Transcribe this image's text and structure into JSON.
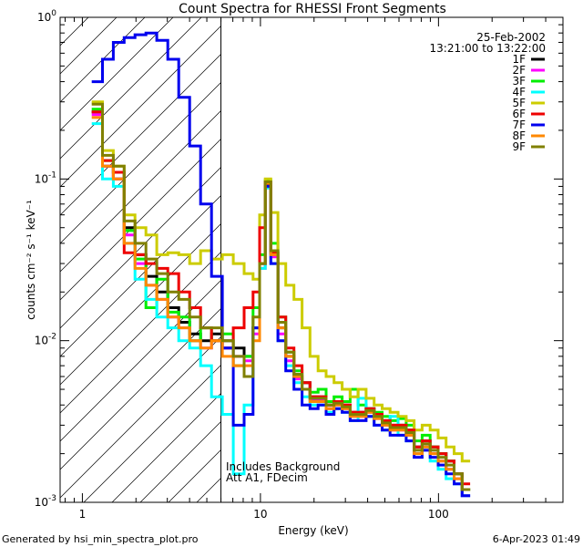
{
  "chart_data": {
    "type": "line",
    "title": "Count Spectra for RHESSI Front Segments",
    "xlabel": "Energy (keV)",
    "ylabel": "counts cm⁻² s⁻¹ keV⁻¹",
    "xscale": "log",
    "yscale": "log",
    "xlim": [
      0.75,
      500
    ],
    "ylim": [
      0.001,
      1.0
    ],
    "x_ticks": [
      {
        "value": 1,
        "label": "1"
      },
      {
        "value": 10,
        "label": "10"
      },
      {
        "value": 100,
        "label": "100"
      }
    ],
    "y_ticks": [
      {
        "value": 1.0,
        "base": "10",
        "exp": "0"
      },
      {
        "value": 0.1,
        "base": "10",
        "exp": "-1"
      },
      {
        "value": 0.01,
        "base": "10",
        "exp": "-2"
      },
      {
        "value": 0.001,
        "base": "10",
        "exp": "-3"
      }
    ],
    "date": "25-Feb-2002",
    "time_range": "13:21:00 to 13:22:00",
    "hatched_region_max_kev": 6,
    "annotation_line1": "Includes Background",
    "annotation_line2": "Att A1, FDecim",
    "legend_position": "top-right",
    "series": [
      {
        "name": "1F",
        "color": "#000000",
        "values": [
          0.26,
          0.12,
          0.1,
          0.05,
          0.034,
          0.025,
          0.02,
          0.016,
          0.013,
          0.011,
          0.01,
          0.011,
          0.01,
          0.009,
          0.008,
          0.012,
          0.03,
          0.092,
          0.035,
          0.012,
          0.008,
          0.006,
          0.0055,
          0.0045,
          0.0045,
          0.004,
          0.0042,
          0.004,
          0.0036,
          0.0036,
          0.0038,
          0.0035,
          0.0032,
          0.003,
          0.003,
          0.0028,
          0.0022,
          0.0024,
          0.0022,
          0.002,
          0.0018,
          0.0015,
          0.0012
        ]
      },
      {
        "name": "2F",
        "color": "#ff00ff",
        "values": [
          0.25,
          0.12,
          0.1,
          0.045,
          0.03,
          0.022,
          0.018,
          0.014,
          0.012,
          0.01,
          0.009,
          0.01,
          0.009,
          0.008,
          0.0075,
          0.011,
          0.028,
          0.09,
          0.033,
          0.011,
          0.0075,
          0.0058,
          0.005,
          0.0043,
          0.0043,
          0.0038,
          0.004,
          0.0038,
          0.0034,
          0.0034,
          0.0036,
          0.0033,
          0.003,
          0.0028,
          0.0028,
          0.0026,
          0.002,
          0.0022,
          0.002,
          0.0018,
          0.0016,
          0.0014,
          0.0011
        ]
      },
      {
        "name": "3F",
        "color": "#00ee00",
        "values": [
          0.27,
          0.13,
          0.11,
          0.048,
          0.032,
          0.016,
          0.024,
          0.015,
          0.014,
          0.01,
          0.012,
          0.01,
          0.011,
          0.007,
          0.008,
          0.016,
          0.034,
          0.098,
          0.04,
          0.014,
          0.0085,
          0.0065,
          0.005,
          0.0048,
          0.005,
          0.0042,
          0.0045,
          0.0042,
          0.005,
          0.004,
          0.0038,
          0.0036,
          0.0034,
          0.0032,
          0.0033,
          0.003,
          0.0024,
          0.0026,
          0.0022,
          0.002,
          0.0018,
          0.0015,
          0.0012
        ]
      },
      {
        "name": "4F",
        "color": "#00ffff",
        "values": [
          0.22,
          0.1,
          0.09,
          0.04,
          0.024,
          0.018,
          0.014,
          0.012,
          0.01,
          0.009,
          0.007,
          0.0045,
          0.0035,
          0.0015,
          0.004,
          0.012,
          0.028,
          0.088,
          0.03,
          0.01,
          0.007,
          0.0055,
          0.0045,
          0.004,
          0.004,
          0.0036,
          0.0038,
          0.0036,
          0.0032,
          0.0044,
          0.0034,
          0.003,
          0.0028,
          0.0034,
          0.0026,
          0.0024,
          0.002,
          0.0022,
          0.0018,
          0.0016,
          0.0014,
          0.0013,
          0.0011
        ]
      },
      {
        "name": "5F",
        "color": "#cccc00",
        "values": [
          0.3,
          0.15,
          0.12,
          0.06,
          0.05,
          0.045,
          0.034,
          0.035,
          0.034,
          0.03,
          0.036,
          0.032,
          0.034,
          0.03,
          0.026,
          0.024,
          0.06,
          0.1,
          0.062,
          0.03,
          0.022,
          0.018,
          0.012,
          0.008,
          0.0065,
          0.006,
          0.0055,
          0.005,
          0.0045,
          0.005,
          0.0044,
          0.004,
          0.0038,
          0.0036,
          0.0034,
          0.0032,
          0.0028,
          0.003,
          0.0028,
          0.0025,
          0.0022,
          0.002,
          0.0018
        ]
      },
      {
        "name": "6F",
        "color": "#ee0000",
        "values": [
          0.26,
          0.13,
          0.11,
          0.035,
          0.034,
          0.03,
          0.028,
          0.026,
          0.02,
          0.016,
          0.012,
          0.01,
          0.009,
          0.012,
          0.016,
          0.02,
          0.05,
          0.095,
          0.035,
          0.014,
          0.009,
          0.007,
          0.0055,
          0.0045,
          0.0045,
          0.004,
          0.0042,
          0.004,
          0.0036,
          0.0036,
          0.0038,
          0.0035,
          0.0032,
          0.003,
          0.003,
          0.0028,
          0.0022,
          0.0024,
          0.0022,
          0.002,
          0.0018,
          0.0015,
          0.0013
        ]
      },
      {
        "name": "7F",
        "color": "#0000ee",
        "values": [
          0.4,
          0.55,
          0.7,
          0.75,
          0.78,
          0.8,
          0.72,
          0.55,
          0.32,
          0.16,
          0.07,
          0.025,
          0.009,
          0.003,
          0.0035,
          0.012,
          0.03,
          0.09,
          0.03,
          0.01,
          0.0065,
          0.005,
          0.004,
          0.0038,
          0.004,
          0.0035,
          0.0038,
          0.0036,
          0.0032,
          0.0032,
          0.0034,
          0.003,
          0.0028,
          0.0026,
          0.0026,
          0.0024,
          0.0019,
          0.0021,
          0.0019,
          0.0017,
          0.0015,
          0.0013,
          0.0011
        ]
      },
      {
        "name": "8F",
        "color": "#ff8800",
        "values": [
          0.24,
          0.12,
          0.1,
          0.04,
          0.028,
          0.022,
          0.018,
          0.014,
          0.012,
          0.01,
          0.009,
          0.01,
          0.008,
          0.007,
          0.007,
          0.01,
          0.03,
          0.094,
          0.034,
          0.012,
          0.008,
          0.006,
          0.005,
          0.0042,
          0.0042,
          0.0038,
          0.004,
          0.0038,
          0.0034,
          0.0034,
          0.0036,
          0.0033,
          0.003,
          0.0028,
          0.0028,
          0.0026,
          0.002,
          0.0022,
          0.002,
          0.0018,
          0.0016,
          0.0014,
          0.0012
        ]
      },
      {
        "name": "9F",
        "color": "#808000",
        "values": [
          0.29,
          0.14,
          0.12,
          0.055,
          0.04,
          0.032,
          0.026,
          0.02,
          0.018,
          0.014,
          0.012,
          0.012,
          0.01,
          0.008,
          0.006,
          0.014,
          0.03,
          0.096,
          0.036,
          0.013,
          0.0085,
          0.0062,
          0.005,
          0.0044,
          0.0044,
          0.004,
          0.0041,
          0.0039,
          0.0035,
          0.0035,
          0.0037,
          0.0034,
          0.0031,
          0.0029,
          0.0029,
          0.0027,
          0.0021,
          0.0023,
          0.0021,
          0.0019,
          0.0017,
          0.0015,
          0.0012
        ]
      }
    ],
    "x": [
      1.21,
      1.39,
      1.6,
      1.84,
      2.12,
      2.44,
      2.81,
      3.24,
      3.73,
      4.3,
      4.95,
      5.7,
      6.56,
      7.55,
      8.69,
      9.5,
      10.3,
      11.0,
      11.9,
      13.2,
      14.6,
      16.3,
      18.0,
      20.0,
      22.2,
      24.6,
      27.3,
      30.3,
      33.6,
      37.2,
      41.3,
      45.8,
      50.8,
      56.3,
      62.5,
      69.3,
      76.8,
      85.2,
      94.5,
      104.8,
      116.2,
      128.9,
      143.0
    ]
  },
  "footer": {
    "left": "Generated by hsi_min_spectra_plot.pro",
    "right": "6-Apr-2023 01:49"
  }
}
